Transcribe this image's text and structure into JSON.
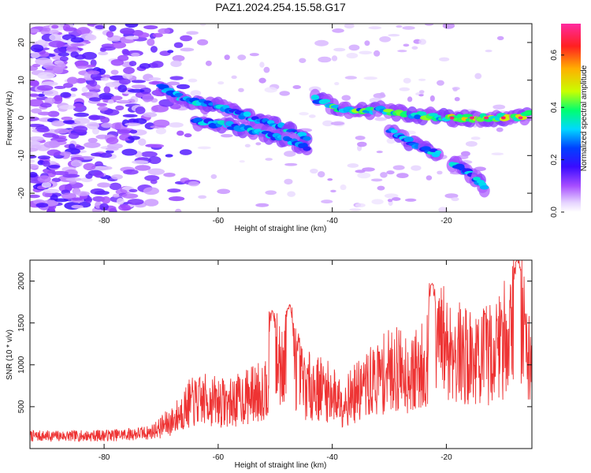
{
  "title": "PAZ1.2024.254.15.58.G17",
  "chart_data": [
    {
      "type": "heatmap",
      "title": "PAZ1.2024.254.15.58.G17",
      "xlabel": "Height of straight line (km)",
      "ylabel": "Frequency (Hz)",
      "xlim": [
        -93,
        -5
      ],
      "ylim": [
        -25,
        25
      ],
      "xticks": [
        "-80",
        "-60",
        "-40",
        "-20"
      ],
      "yticks": [
        "-20",
        "-10",
        "0",
        "10",
        "20"
      ],
      "colorbar": {
        "label": "Normalized spectral amplitude",
        "range": [
          0.0,
          0.72
        ],
        "ticks": [
          "0.0",
          "0.2",
          "0.4",
          "0.6"
        ],
        "colors": [
          "#ffffff",
          "#d9b8ff",
          "#8a2be2",
          "#3a0cff",
          "#0050ff",
          "#00d8ff",
          "#00ff80",
          "#c8ff00",
          "#ffb000",
          "#ff2020",
          "#ff2aa0"
        ]
      },
      "ridges": [
        {
          "name": "",
          "points": [
            [
              -70,
              8
            ],
            [
              -66,
              5
            ],
            [
              -60,
              3
            ],
            [
              -54,
              0
            ],
            [
              -48,
              -3
            ],
            [
              -44,
              -6
            ]
          ]
        },
        {
          "name": "",
          "points": [
            [
              -64,
              -1
            ],
            [
              -58,
              -2
            ],
            [
              -52,
              -4
            ],
            [
              -48,
              -6
            ],
            [
              -44,
              -8
            ]
          ]
        },
        {
          "name": "",
          "points": [
            [
              -43,
              5
            ],
            [
              -38,
              2
            ],
            [
              -32,
              2
            ],
            [
              -26,
              1
            ],
            [
              -20,
              0
            ],
            [
              -14,
              0
            ],
            [
              -8,
              0
            ],
            [
              -5,
              1
            ]
          ]
        },
        {
          "name": "",
          "points": [
            [
              -30,
              -3
            ],
            [
              -27,
              -6
            ],
            [
              -24,
              -8
            ],
            [
              -21,
              -10
            ]
          ]
        },
        {
          "name": "",
          "points": [
            [
              -19,
              -12
            ],
            [
              -15,
              -16
            ],
            [
              -13,
              -19
            ]
          ]
        }
      ]
    },
    {
      "type": "line",
      "xlabel": "Height of straight line (km)",
      "ylabel": "SNR (10 * v/v)",
      "xlim": [
        -93,
        -5
      ],
      "ylim": [
        0,
        2250
      ],
      "xticks": [
        "-80",
        "-60",
        "-40",
        "-20"
      ],
      "yticks": [
        "500",
        "1000",
        "1500",
        "2000"
      ],
      "series": [
        {
          "color": "#ee3333",
          "envelope": [
            {
              "x": -93,
              "y": 150
            },
            {
              "x": -85,
              "y": 150
            },
            {
              "x": -78,
              "y": 160
            },
            {
              "x": -72,
              "y": 190
            },
            {
              "x": -68,
              "y": 330
            },
            {
              "x": -65,
              "y": 540
            },
            {
              "x": -62,
              "y": 580
            },
            {
              "x": -58,
              "y": 540
            },
            {
              "x": -55,
              "y": 620
            },
            {
              "x": -52,
              "y": 700
            },
            {
              "x": -50,
              "y": 1050
            },
            {
              "x": -47,
              "y": 1100
            },
            {
              "x": -45,
              "y": 760
            },
            {
              "x": -42,
              "y": 720
            },
            {
              "x": -40,
              "y": 650
            },
            {
              "x": -38,
              "y": 560
            },
            {
              "x": -35,
              "y": 700
            },
            {
              "x": -32,
              "y": 850
            },
            {
              "x": -29,
              "y": 960
            },
            {
              "x": -26,
              "y": 880
            },
            {
              "x": -24,
              "y": 1000
            },
            {
              "x": -21,
              "y": 1300
            },
            {
              "x": -18,
              "y": 1150
            },
            {
              "x": -15,
              "y": 1050
            },
            {
              "x": -12,
              "y": 1150
            },
            {
              "x": -10,
              "y": 1300
            },
            {
              "x": -8,
              "y": 1600
            },
            {
              "x": -7,
              "y": 1750
            },
            {
              "x": -6,
              "y": 1300
            },
            {
              "x": -5,
              "y": 900
            }
          ],
          "peaks": [
            {
              "x": -50.5,
              "y": 1650
            },
            {
              "x": -47.5,
              "y": 1720
            },
            {
              "x": -22.5,
              "y": 1980
            },
            {
              "x": -7.5,
              "y": 2250
            }
          ]
        }
      ]
    }
  ]
}
